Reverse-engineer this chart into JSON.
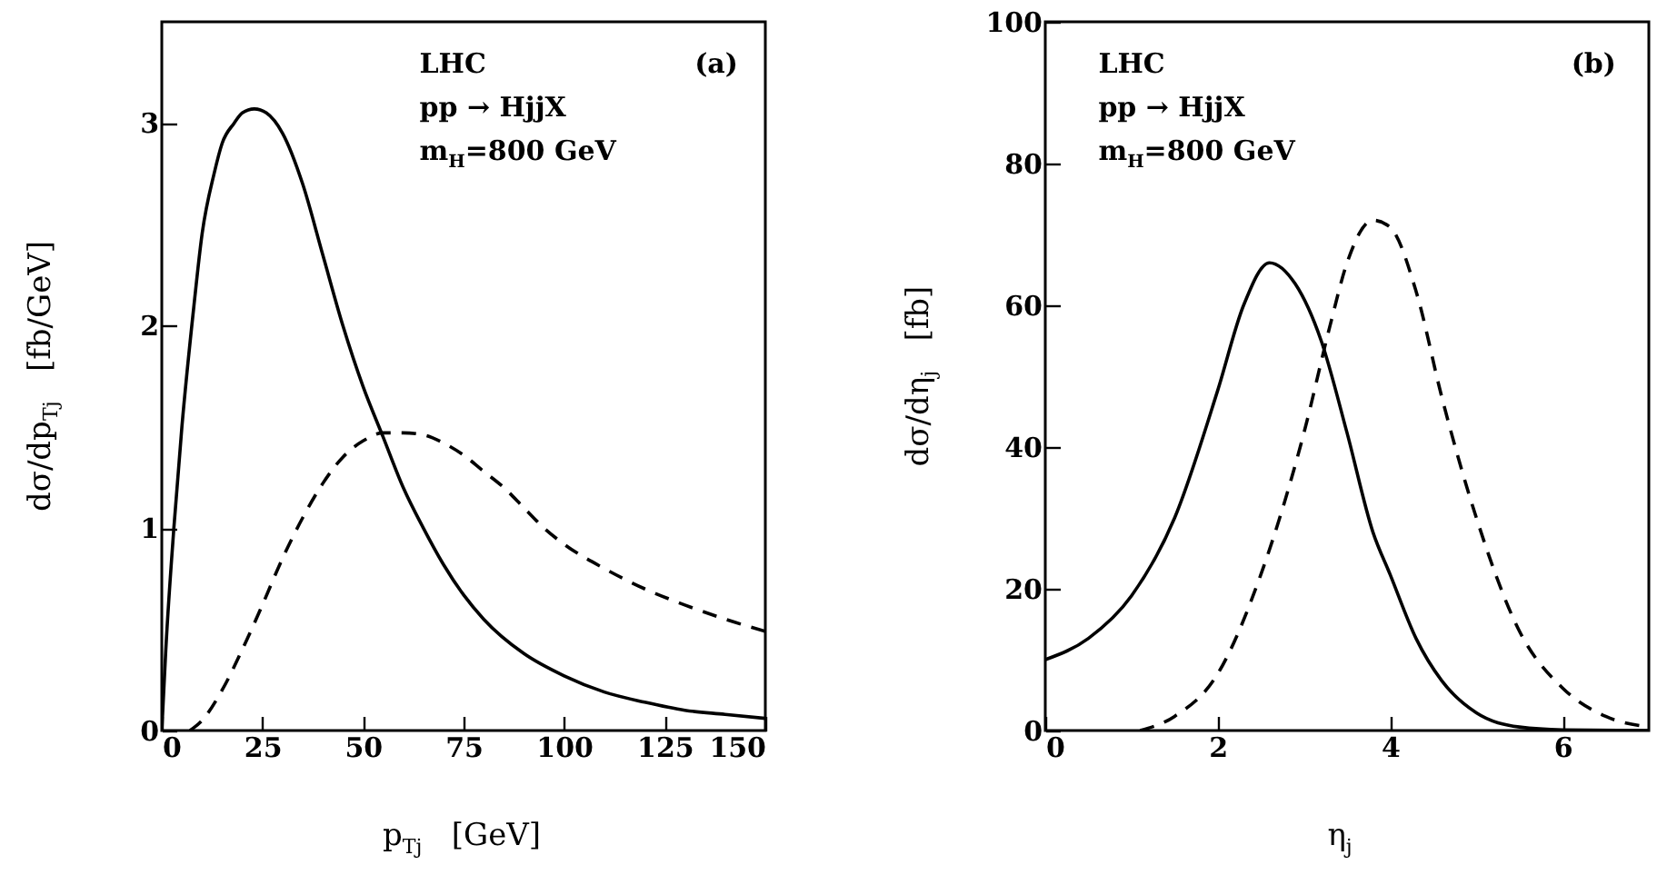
{
  "chart_data": [
    {
      "type": "line",
      "xlabel": "p$_{Tj}$   [GeV]",
      "ylabel": "dσ/dp$_{Tj}$   [fb/GeV]",
      "annotations": [
        "LHC",
        "pp → HjjX",
        "m$_{H}$=800 GeV",
        "(a)"
      ],
      "xlim": [
        0,
        150
      ],
      "ylim": [
        0,
        3.5
      ],
      "xticks": [
        0,
        25,
        50,
        75,
        100,
        125,
        150
      ],
      "yticks": [
        0,
        1,
        2,
        3
      ],
      "series": [
        {
          "color": "#000000",
          "line_style": "solid",
          "x": [
            0,
            1,
            3,
            5,
            8,
            10,
            13,
            15,
            18,
            20,
            23,
            26,
            30,
            35,
            40,
            45,
            50,
            55,
            60,
            65,
            70,
            75,
            80,
            90,
            100,
            110,
            120,
            130,
            140,
            150
          ],
          "values": [
            0,
            0.4,
            1.0,
            1.5,
            2.1,
            2.45,
            2.75,
            2.9,
            3.0,
            3.05,
            3.07,
            3.05,
            2.95,
            2.7,
            2.35,
            2.0,
            1.7,
            1.45,
            1.2,
            1.0,
            0.82,
            0.67,
            0.55,
            0.38,
            0.27,
            0.19,
            0.14,
            0.1,
            0.08,
            0.06
          ]
        },
        {
          "color": "#000000",
          "line_style": "dashed",
          "x": [
            7,
            10,
            15,
            20,
            25,
            30,
            35,
            40,
            45,
            50,
            55,
            60,
            65,
            70,
            75,
            80,
            85,
            90,
            95,
            100,
            110,
            120,
            130,
            140,
            150
          ],
          "values": [
            0,
            0.05,
            0.2,
            0.4,
            0.62,
            0.85,
            1.05,
            1.22,
            1.35,
            1.43,
            1.47,
            1.47,
            1.46,
            1.42,
            1.36,
            1.28,
            1.2,
            1.1,
            1.0,
            0.92,
            0.8,
            0.7,
            0.62,
            0.55,
            0.49
          ]
        }
      ]
    },
    {
      "type": "line",
      "xlabel": "η$_{j}$",
      "ylabel": "dσ/dη$_{j}$   [fb]",
      "annotations": [
        "LHC",
        "pp → HjjX",
        "m$_{H}$=800 GeV",
        "(b)"
      ],
      "xlim": [
        0,
        7
      ],
      "ylim": [
        0,
        100
      ],
      "xticks": [
        0,
        2,
        4,
        6
      ],
      "yticks": [
        0,
        20,
        40,
        60,
        80,
        100
      ],
      "series": [
        {
          "color": "#000000",
          "line_style": "solid",
          "x": [
            0,
            0.5,
            1,
            1.5,
            2,
            2.3,
            2.6,
            2.9,
            3.2,
            3.5,
            3.8,
            4,
            4.3,
            4.6,
            5,
            5.5,
            6,
            7
          ],
          "values": [
            10,
            13,
            19,
            30,
            48,
            60,
            66,
            63,
            55,
            42,
            28,
            22,
            13,
            7,
            2.5,
            0.5,
            0.1,
            0
          ]
        },
        {
          "color": "#000000",
          "line_style": "dashed",
          "x": [
            1.1,
            1.5,
            2,
            2.5,
            3,
            3.3,
            3.5,
            3.8,
            4,
            4.3,
            4.6,
            5,
            5.5,
            6,
            6.5,
            7
          ],
          "values": [
            0,
            2,
            8,
            22,
            42,
            57,
            66,
            72,
            71,
            62,
            47,
            30,
            14,
            6,
            2,
            0.5
          ]
        }
      ]
    }
  ]
}
